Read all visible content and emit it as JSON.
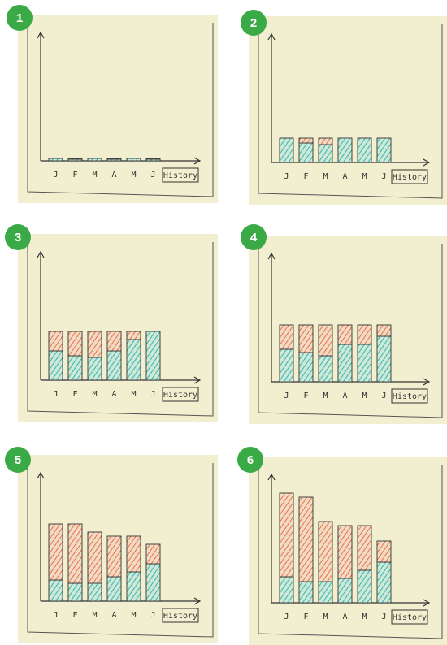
{
  "panels": [
    {
      "number": "1",
      "months": [
        "J",
        "F",
        "M",
        "A",
        "M",
        "J"
      ],
      "button": "History"
    },
    {
      "number": "2",
      "months": [
        "J",
        "F",
        "M",
        "A",
        "M",
        "J"
      ],
      "button": "History"
    },
    {
      "number": "3",
      "months": [
        "J",
        "F",
        "M",
        "A",
        "M",
        "J"
      ],
      "button": "History"
    },
    {
      "number": "4",
      "months": [
        "J",
        "F",
        "M",
        "A",
        "M",
        "J"
      ],
      "button": "History"
    },
    {
      "number": "5",
      "months": [
        "J",
        "F",
        "M",
        "A",
        "M",
        "J"
      ],
      "button": "History"
    },
    {
      "number": "6",
      "months": [
        "J",
        "F",
        "M",
        "A",
        "M",
        "J"
      ],
      "button": "History"
    }
  ]
}
